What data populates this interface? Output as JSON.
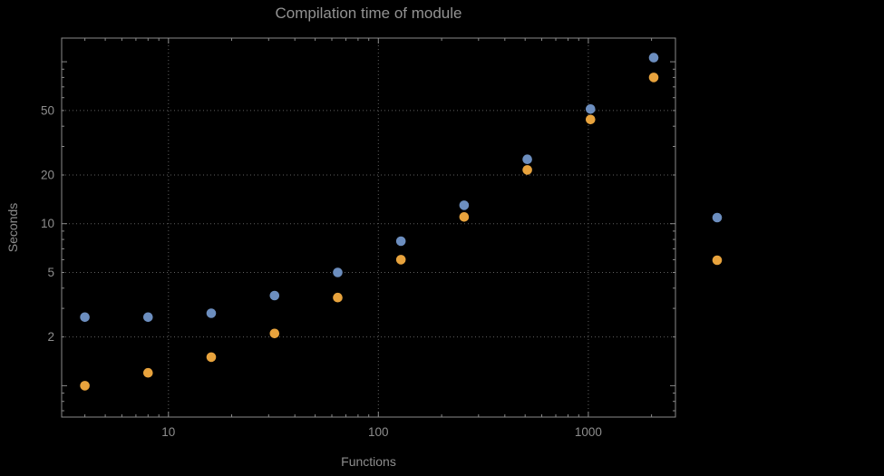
{
  "chart": {
    "title": "Compilation time of module",
    "xlabel": "Functions",
    "ylabel": "Seconds"
  },
  "chart_data": {
    "type": "scatter",
    "x_scale": "log",
    "y_scale": "log",
    "x_range": [
      3.1,
      2600
    ],
    "y_range": [
      0.64,
      140
    ],
    "x_ticks": [
      10,
      100,
      1000
    ],
    "y_ticks": [
      2,
      5,
      10,
      20,
      50
    ],
    "grid": "dotted",
    "x": [
      4,
      8,
      16,
      32,
      64,
      128,
      256,
      512,
      1024,
      2048
    ],
    "series": [
      {
        "name": "series-1",
        "color": "#6c8ebf",
        "values": [
          2.65,
          2.65,
          2.8,
          3.6,
          5.0,
          7.8,
          13,
          25,
          51,
          106
        ]
      },
      {
        "name": "series-2",
        "color": "#e8a33d",
        "values": [
          1.0,
          1.2,
          1.5,
          2.1,
          3.5,
          6.0,
          11,
          21.5,
          44,
          80
        ]
      }
    ],
    "title": "Compilation time of module",
    "xlabel": "Functions",
    "ylabel": "Seconds"
  },
  "legend": {
    "markers": [
      {
        "name": "legend-marker-series-1",
        "color": "#6c8ebf"
      },
      {
        "name": "legend-marker-series-2",
        "color": "#e8a33d"
      }
    ]
  },
  "colors": {
    "background": "#000000",
    "frame": "#8a8a8a",
    "grid": "#5f5f5f",
    "text": "#8d8d8d"
  }
}
